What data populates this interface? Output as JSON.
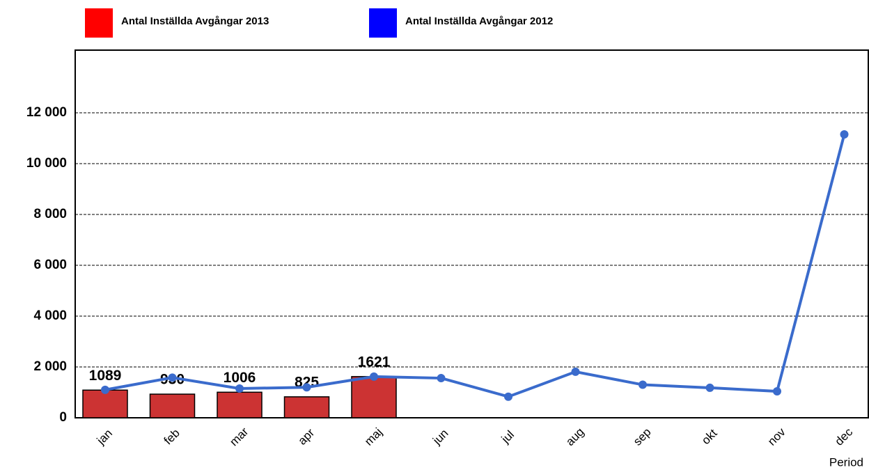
{
  "chart_data": {
    "type": "bar_line",
    "x_label": "Period",
    "categories": [
      "jan",
      "feb",
      "mar",
      "apr",
      "maj",
      "jun",
      "jul",
      "aug",
      "sep",
      "okt",
      "nov",
      "dec"
    ],
    "series": [
      {
        "name": "Antal Inställda Avgångar 2013",
        "type": "bar",
        "color": "#cc3333",
        "legend_color": "#ff0000",
        "values": [
          1089,
          930,
          1006,
          825,
          1621,
          null,
          null,
          null,
          null,
          null,
          null,
          null
        ]
      },
      {
        "name": "Antal Inställda Avgångar 2012",
        "type": "line",
        "color": "#3a6bcc",
        "legend_color": "#0000ff",
        "values": [
          1100,
          1580,
          1150,
          1200,
          1620,
          1560,
          830,
          1810,
          1300,
          1180,
          1040,
          11150
        ]
      }
    ],
    "ylim": [
      0,
      14466
    ],
    "yticks": [
      0,
      {
        "value": 2000,
        "label": "2 000"
      },
      {
        "value": 4000,
        "label": "4 000"
      },
      {
        "value": 6000,
        "label": "6 000"
      },
      {
        "value": 8000,
        "label": "8 000"
      },
      {
        "value": 10000,
        "label": "10 000"
      },
      {
        "value": 12000,
        "label": "12 000"
      }
    ],
    "grid": true
  }
}
